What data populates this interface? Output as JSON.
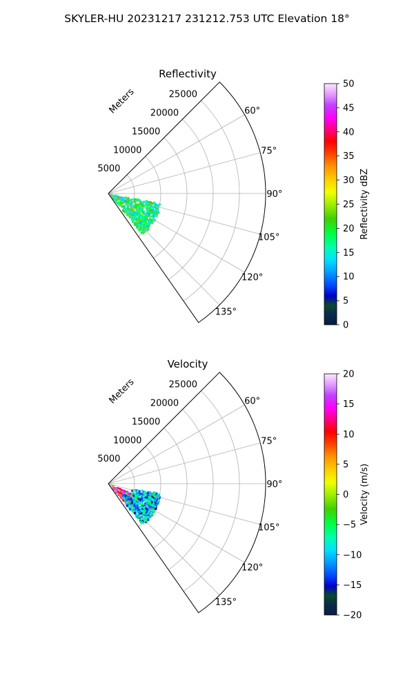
{
  "suptitle": "SKYLER-HU  20231217  231212.753 UTC Elevation 18°",
  "chart_data": [
    {
      "type": "heatmap",
      "subtype": "polar-sector (PPI radar sweep)",
      "title": "Reflectivity",
      "radial_label": "Meters",
      "radial_ticks": [
        5000,
        10000,
        15000,
        20000,
        25000
      ],
      "radial_tick_labels": [
        "5000",
        "10000",
        "15000",
        "20000",
        "25000"
      ],
      "rlim": [
        0,
        30000
      ],
      "theta_ticks": [
        60,
        75,
        90,
        105,
        120,
        135
      ],
      "theta_tick_labels": [
        "60°",
        "75°",
        "90°",
        "105°",
        "120°",
        "135°"
      ],
      "theta_range_deg": [
        45,
        145
      ],
      "grid": true,
      "colorbar": {
        "label": "Reflectivity dBZ",
        "range": [
          0,
          50
        ],
        "ticks": [
          0,
          5,
          10,
          15,
          20,
          25,
          30,
          35,
          40,
          45,
          50
        ],
        "tick_labels": [
          "0",
          "5",
          "10",
          "15",
          "20",
          "25",
          "30",
          "35",
          "40",
          "45",
          "50"
        ]
      },
      "echo_description": "Returns within about 10 km, between azimuths 100° and 140°; mostly 15–25 dBZ",
      "echo_regions": [
        {
          "az": [
            100,
            140
          ],
          "range_m": [
            0,
            10000
          ],
          "value": 18
        }
      ]
    },
    {
      "type": "heatmap",
      "subtype": "polar-sector (PPI radar sweep)",
      "title": "Velocity",
      "radial_label": "Meters",
      "radial_ticks": [
        5000,
        10000,
        15000,
        20000,
        25000
      ],
      "radial_tick_labels": [
        "5000",
        "10000",
        "15000",
        "20000",
        "25000"
      ],
      "rlim": [
        0,
        30000
      ],
      "theta_ticks": [
        60,
        75,
        90,
        105,
        120,
        135
      ],
      "theta_tick_labels": [
        "60°",
        "75°",
        "90°",
        "105°",
        "120°",
        "135°"
      ],
      "theta_range_deg": [
        45,
        145
      ],
      "grid": true,
      "colorbar": {
        "label": "Velocity (m/s)",
        "range": [
          -20,
          20
        ],
        "ticks": [
          -20,
          -15,
          -10,
          -5,
          0,
          5,
          10,
          15,
          20
        ],
        "tick_labels": [
          "−20",
          "−15",
          "−10",
          "−5",
          "0",
          "5",
          "10",
          "15",
          "20"
        ]
      },
      "echo_description": "Outbound ~10–15 m/s near radar (azimuth 110°–135°), inbound ~−10 m/s farther out",
      "echo_regions": [
        {
          "az": [
            112,
            138
          ],
          "range_m": [
            500,
            5000
          ],
          "value": 12
        },
        {
          "az": [
            100,
            140
          ],
          "range_m": [
            3000,
            10000
          ],
          "value": -10
        }
      ]
    }
  ]
}
